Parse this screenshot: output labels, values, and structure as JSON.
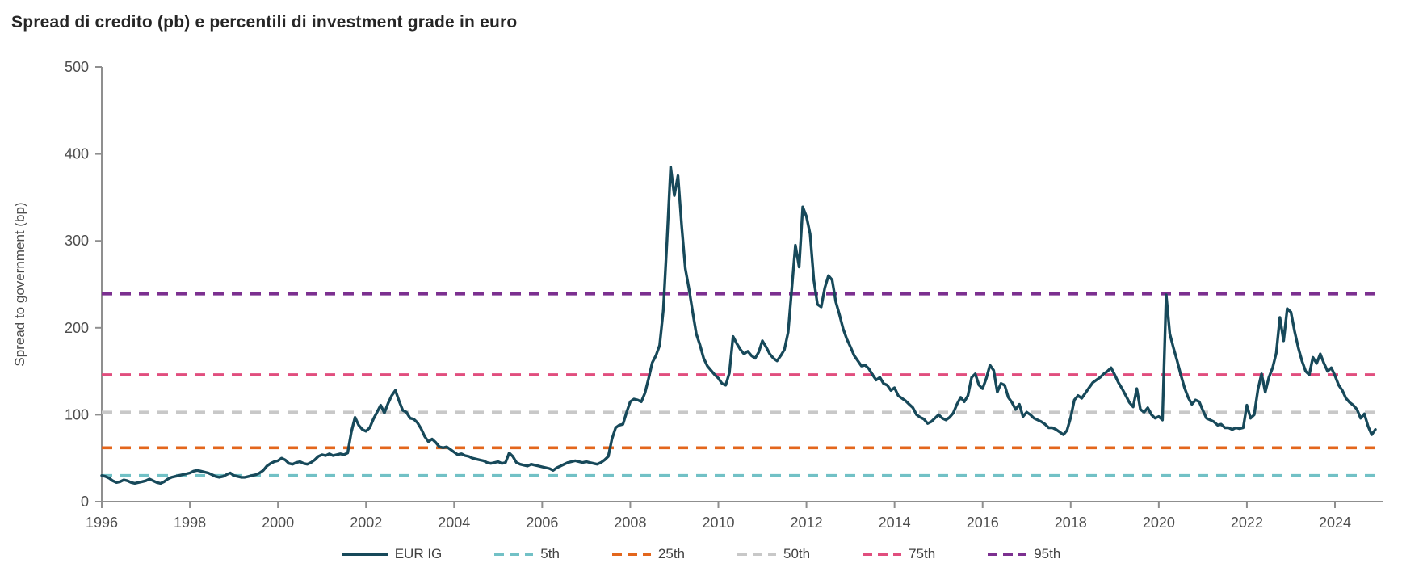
{
  "title": "Spread di credito (pb) e percentili di investment grade in euro",
  "colors": {
    "background": "#ffffff",
    "title_text": "#262626",
    "axis_line": "#8f8f8f",
    "tick_text": "#4d4d4d",
    "legend_text": "#404040",
    "eur_ig_line": "#17495a",
    "p5": "#72c1c6",
    "p25": "#e3661c",
    "p50": "#c8c8c8",
    "p75": "#e14e7e",
    "p95": "#7c3090"
  },
  "chart_data": {
    "type": "line",
    "title": "Spread di credito (pb) e percentili di investment grade in euro",
    "xlabel": "",
    "ylabel": "Spread to government (bp)",
    "ylim": [
      0,
      500
    ],
    "xlim": [
      1996,
      2025.1
    ],
    "y_ticks": [
      0,
      100,
      200,
      300,
      400,
      500
    ],
    "x_ticks": [
      1996,
      1998,
      2000,
      2002,
      2004,
      2006,
      2008,
      2010,
      2012,
      2014,
      2016,
      2018,
      2020,
      2022,
      2024
    ],
    "grid": false,
    "legend_position": "bottom",
    "series": [
      {
        "name": "EUR IG",
        "kind": "line",
        "style": "solid",
        "color": "#17495a",
        "start_year": 1996,
        "frequency": "monthly",
        "values": [
          30,
          29,
          27,
          24,
          22,
          23,
          25,
          24,
          22,
          21,
          22,
          23,
          24,
          26,
          24,
          22,
          21,
          23,
          26,
          28,
          29,
          30,
          31,
          32,
          33,
          35,
          36,
          35,
          34,
          33,
          31,
          29,
          28,
          29,
          31,
          33,
          30,
          29,
          28,
          28,
          29,
          30,
          31,
          33,
          36,
          41,
          44,
          46,
          47,
          50,
          48,
          44,
          43,
          45,
          46,
          44,
          43,
          45,
          48,
          52,
          54,
          53,
          55,
          53,
          54,
          55,
          54,
          56,
          80,
          97,
          88,
          83,
          81,
          85,
          95,
          103,
          111,
          102,
          113,
          122,
          128,
          116,
          105,
          103,
          96,
          95,
          91,
          84,
          75,
          69,
          72,
          68,
          63,
          62,
          63,
          60,
          57,
          54,
          55,
          53,
          52,
          50,
          49,
          48,
          47,
          45,
          44,
          45,
          46,
          44,
          45,
          56,
          52,
          45,
          43,
          42,
          41,
          43,
          42,
          41,
          40,
          39,
          38,
          36,
          39,
          41,
          43,
          45,
          46,
          47,
          46,
          45,
          46,
          45,
          44,
          43,
          45,
          48,
          52,
          72,
          85,
          88,
          89,
          103,
          115,
          118,
          117,
          115,
          125,
          142,
          160,
          168,
          180,
          220,
          300,
          385,
          352,
          375,
          317,
          268,
          245,
          218,
          193,
          180,
          165,
          156,
          151,
          146,
          142,
          136,
          134,
          148,
          190,
          182,
          175,
          170,
          173,
          168,
          165,
          172,
          185,
          178,
          170,
          165,
          162,
          168,
          175,
          195,
          245,
          295,
          270,
          339,
          328,
          308,
          255,
          227,
          224,
          246,
          260,
          255,
          230,
          215,
          199,
          187,
          178,
          168,
          162,
          156,
          157,
          153,
          146,
          140,
          143,
          136,
          134,
          128,
          131,
          122,
          119,
          116,
          112,
          108,
          100,
          97,
          95,
          90,
          92,
          96,
          100,
          96,
          94,
          97,
          102,
          112,
          120,
          115,
          122,
          143,
          147,
          134,
          130,
          142,
          157,
          151,
          126,
          136,
          134,
          120,
          114,
          106,
          112,
          98,
          103,
          100,
          96,
          94,
          92,
          89,
          85,
          85,
          83,
          80,
          77,
          82,
          97,
          117,
          122,
          119,
          125,
          131,
          137,
          140,
          143,
          147,
          150,
          154,
          146,
          137,
          130,
          122,
          114,
          109,
          130,
          106,
          103,
          108,
          100,
          96,
          98,
          94,
          238,
          193,
          177,
          162,
          146,
          131,
          120,
          112,
          117,
          115,
          105,
          96,
          94,
          92,
          88,
          89,
          85,
          85,
          83,
          85,
          84,
          85,
          111,
          96,
          100,
          129,
          147,
          126,
          143,
          154,
          171,
          212,
          185,
          222,
          218,
          196,
          177,
          162,
          150,
          146,
          166,
          159,
          170,
          159,
          150,
          154,
          145,
          134,
          128,
          119,
          114,
          111,
          106,
          96,
          101,
          87,
          77,
          83
        ]
      },
      {
        "name": "5th",
        "kind": "hline",
        "style": "dashed",
        "color": "#72c1c6",
        "value": 30
      },
      {
        "name": "25th",
        "kind": "hline",
        "style": "dashed",
        "color": "#e3661c",
        "value": 62
      },
      {
        "name": "50th",
        "kind": "hline",
        "style": "dashed",
        "color": "#c8c8c8",
        "value": 103
      },
      {
        "name": "75th",
        "kind": "hline",
        "style": "dashed",
        "color": "#e14e7e",
        "value": 146
      },
      {
        "name": "95th",
        "kind": "hline",
        "style": "dashed",
        "color": "#7c3090",
        "value": 239
      }
    ]
  }
}
